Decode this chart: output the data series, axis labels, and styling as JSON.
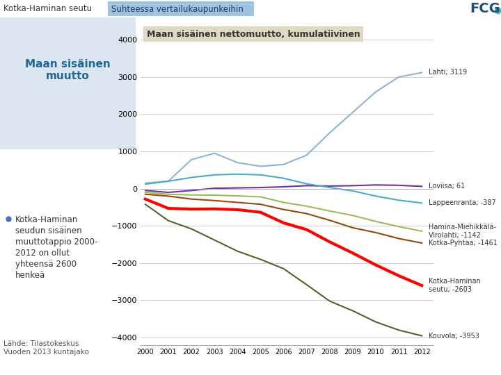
{
  "title": "Maan sisäinen nettomuutto, kumulatiivinen",
  "years": [
    2000,
    2001,
    2002,
    2003,
    2004,
    2005,
    2006,
    2007,
    2008,
    2009,
    2010,
    2011,
    2012
  ],
  "series": [
    {
      "label": "Lahti; 3119",
      "color": "#8db4d8",
      "linewidth": 1.5,
      "values": [
        150,
        200,
        780,
        950,
        700,
        600,
        650,
        900,
        1500,
        2050,
        2600,
        3000,
        3119
      ]
    },
    {
      "label": "Loviisa; 61",
      "color": "#7030a0",
      "linewidth": 1.5,
      "values": [
        -50,
        -100,
        -50,
        10,
        20,
        30,
        50,
        80,
        70,
        80,
        100,
        90,
        61
      ]
    },
    {
      "label": "Lappeenranta; -387",
      "color": "#4bacc6",
      "linewidth": 1.5,
      "values": [
        120,
        200,
        300,
        370,
        390,
        370,
        280,
        130,
        30,
        -60,
        -200,
        -310,
        -387
      ]
    },
    {
      "label": "Hamina-Miehikkälä-\nVirolahti; -1142",
      "color": "#9bbb59",
      "linewidth": 1.5,
      "values": [
        -100,
        -150,
        -170,
        -175,
        -195,
        -220,
        -370,
        -470,
        -600,
        -720,
        -880,
        -1020,
        -1142
      ]
    },
    {
      "label": "Kotka-Pyhtaa; -1461",
      "color": "#974706",
      "linewidth": 1.5,
      "values": [
        -150,
        -200,
        -280,
        -320,
        -370,
        -420,
        -560,
        -670,
        -850,
        -1050,
        -1180,
        -1340,
        -1461
      ]
    },
    {
      "label": "Kotka-Haminan\nseutu; -2603",
      "color": "#ff0000",
      "linewidth": 3.0,
      "values": [
        -280,
        -530,
        -550,
        -545,
        -565,
        -635,
        -920,
        -1100,
        -1430,
        -1730,
        -2050,
        -2340,
        -2603
      ]
    },
    {
      "label": "Kouvola; -3953",
      "color": "#4f6228",
      "linewidth": 1.5,
      "values": [
        -420,
        -860,
        -1080,
        -1380,
        -1680,
        -1900,
        -2150,
        -2580,
        -3020,
        -3280,
        -3580,
        -3800,
        -3953
      ]
    }
  ],
  "ylim": [
    -4200,
    4400
  ],
  "yticks": [
    -4000,
    -3000,
    -2000,
    -1000,
    0,
    1000,
    2000,
    3000,
    4000
  ],
  "title_box_color": "#ddd9c3",
  "header_left": "Kotka-Haminan seutu",
  "header_center": "Suhteessa vertailukaupunkeihin",
  "sidebar_title": "Maan sisäinen\nmuutto",
  "sidebar_bg": "#dce6f1",
  "sidebar_title_color": "#1f6699",
  "bullet_color": "#4472c4",
  "bullet_text": "Kotka-Haminan seudun sisäinen muuttotappio 2000-2012 on ollut yhteensä 2600 henkeä",
  "source_text": "Lähde: Tilastokeskus\nVuoden 2013 kuntajako",
  "label_annotations": [
    {
      "text": "Lahti; 3119",
      "y": 3119,
      "color": "#8db4d8"
    },
    {
      "text": "Loviisa; 61",
      "y": 61,
      "color": "#7030a0"
    },
    {
      "text": "Lappeenranta; -387",
      "y": -387,
      "color": "#4bacc6"
    },
    {
      "text": "Hamina-Miehikkälä-\nVirolahti; -1142",
      "y": -1142,
      "color": "#9bbb59"
    },
    {
      "text": "Kotka-Pyhtaa; -1461",
      "y": -1461,
      "color": "#974706"
    },
    {
      "text": "Kotka-Haminan\nseutu; -2603",
      "y": -2603,
      "color": "#ff0000"
    },
    {
      "text": "Kouvola; -3953",
      "y": -3953,
      "color": "#4f6228"
    }
  ]
}
